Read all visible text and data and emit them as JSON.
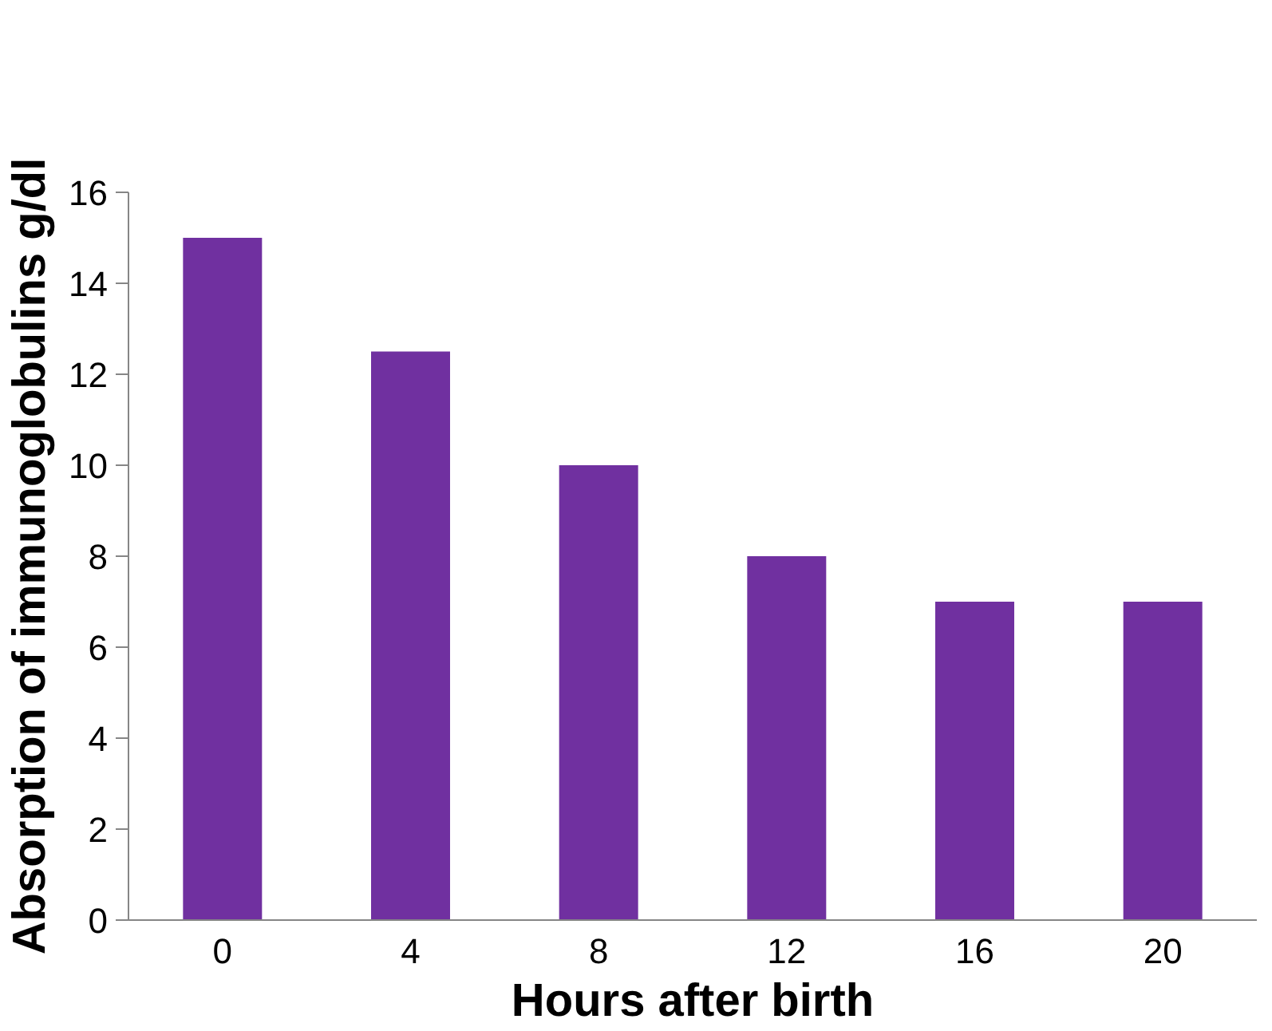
{
  "chart_data": {
    "type": "bar",
    "xlabel": "Hours after birth",
    "ylabel": "Absorption of immunoglobulins g/dl",
    "categories": [
      "0",
      "4",
      "8",
      "12",
      "16",
      "20"
    ],
    "values": [
      15,
      12.5,
      10,
      8,
      7,
      7
    ],
    "color": "#7030a0",
    "ylim": [
      0,
      16
    ],
    "yticks": [
      0,
      2,
      4,
      6,
      8,
      10,
      12,
      14,
      16
    ],
    "grid": false
  }
}
